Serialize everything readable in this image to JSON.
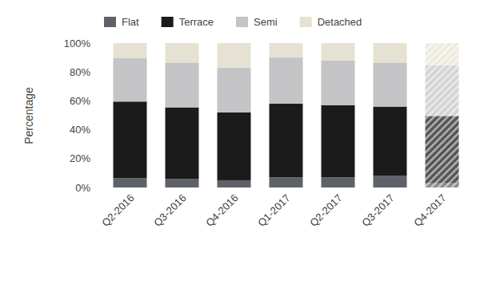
{
  "chart_data": {
    "type": "bar",
    "stacked": true,
    "legend": "top",
    "grid": false,
    "y_label": "Percentage",
    "categories": [
      "Q2-2016",
      "Q3-2016",
      "Q4-2016",
      "Q1-2017",
      "Q2-2017",
      "Q3-2017",
      "Q4-2017"
    ],
    "series": [
      {
        "name": "Flat",
        "color": "#5f6169",
        "values": [
          6.5,
          6,
          5,
          7,
          7,
          8,
          3
        ]
      },
      {
        "name": "Terrace",
        "color": "#1b1b1b",
        "values": [
          53,
          49.5,
          47,
          51,
          50,
          48,
          46.5
        ]
      },
      {
        "name": "Semi",
        "color": "#c4c4c6",
        "values": [
          30,
          31,
          31,
          32,
          31,
          30.5,
          35
        ]
      },
      {
        "name": "Detached",
        "color": "#e6e2d3",
        "values": [
          10.5,
          13.5,
          17,
          10,
          12,
          13.5,
          15.5
        ]
      }
    ],
    "ylim": [
      0,
      100
    ],
    "yticks": [
      {
        "value": 0,
        "label": "0%"
      },
      {
        "value": 20,
        "label": "20%"
      },
      {
        "value": 40,
        "label": "40%"
      },
      {
        "value": 60,
        "label": "60%"
      },
      {
        "value": 80,
        "label": "80%"
      },
      {
        "value": 100,
        "label": "100%"
      }
    ]
  }
}
